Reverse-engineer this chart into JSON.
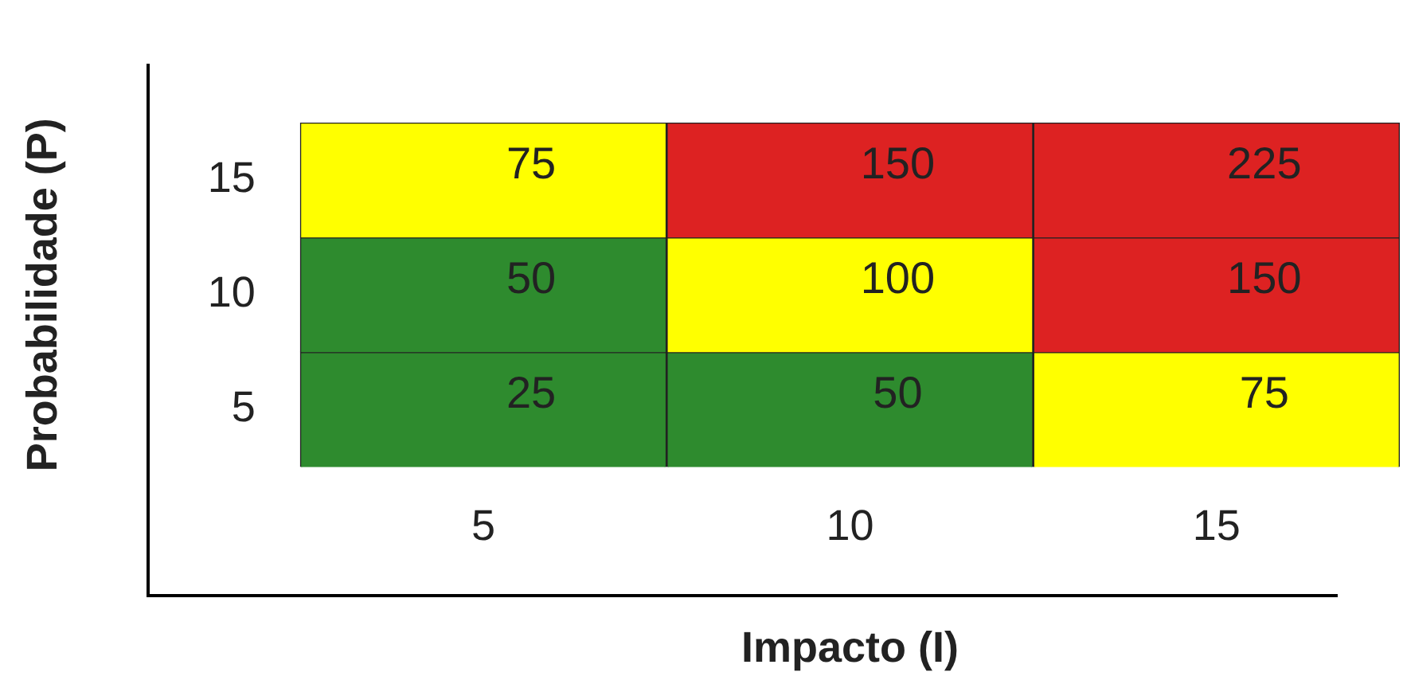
{
  "chart_data": {
    "type": "heatmap",
    "xlabel": "Impacto (I)",
    "ylabel": "Probabilidade (P)",
    "categories": [
      "5",
      "10",
      "15"
    ],
    "y_categories": [
      "15",
      "10",
      "5"
    ],
    "cells": [
      [
        75,
        150,
        225
      ],
      [
        50,
        100,
        150
      ],
      [
        25,
        50,
        75
      ]
    ],
    "colors": [
      [
        "#ffff00",
        "#dd2222",
        "#dd2222"
      ],
      [
        "#2e8b2e",
        "#ffff00",
        "#dd2222"
      ],
      [
        "#2e8b2e",
        "#2e8b2e",
        "#ffff00"
      ]
    ],
    "data_labels": true
  }
}
